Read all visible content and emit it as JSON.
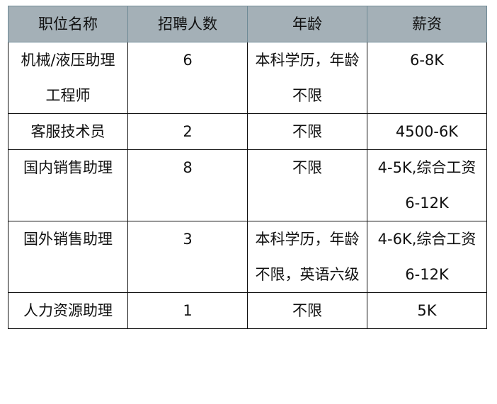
{
  "table": {
    "headers": [
      "职位名称",
      "招聘人数",
      "年龄",
      "薪资"
    ],
    "rows": [
      [
        "机械/液压助理工程师",
        "6",
        "本科学历，年龄不限",
        "6-8K"
      ],
      [
        "客服技术员",
        "2",
        "不限",
        "4500-6K"
      ],
      [
        "国内销售助理",
        "8",
        "不限",
        "4-5K,综合工资 6-12K"
      ],
      [
        "国外销售助理",
        "3",
        "本科学历，年龄不限，英语六级",
        "4-6K,综合工资 6-12K"
      ],
      [
        "人力资源助理",
        "1",
        "不限",
        "5K"
      ]
    ]
  }
}
